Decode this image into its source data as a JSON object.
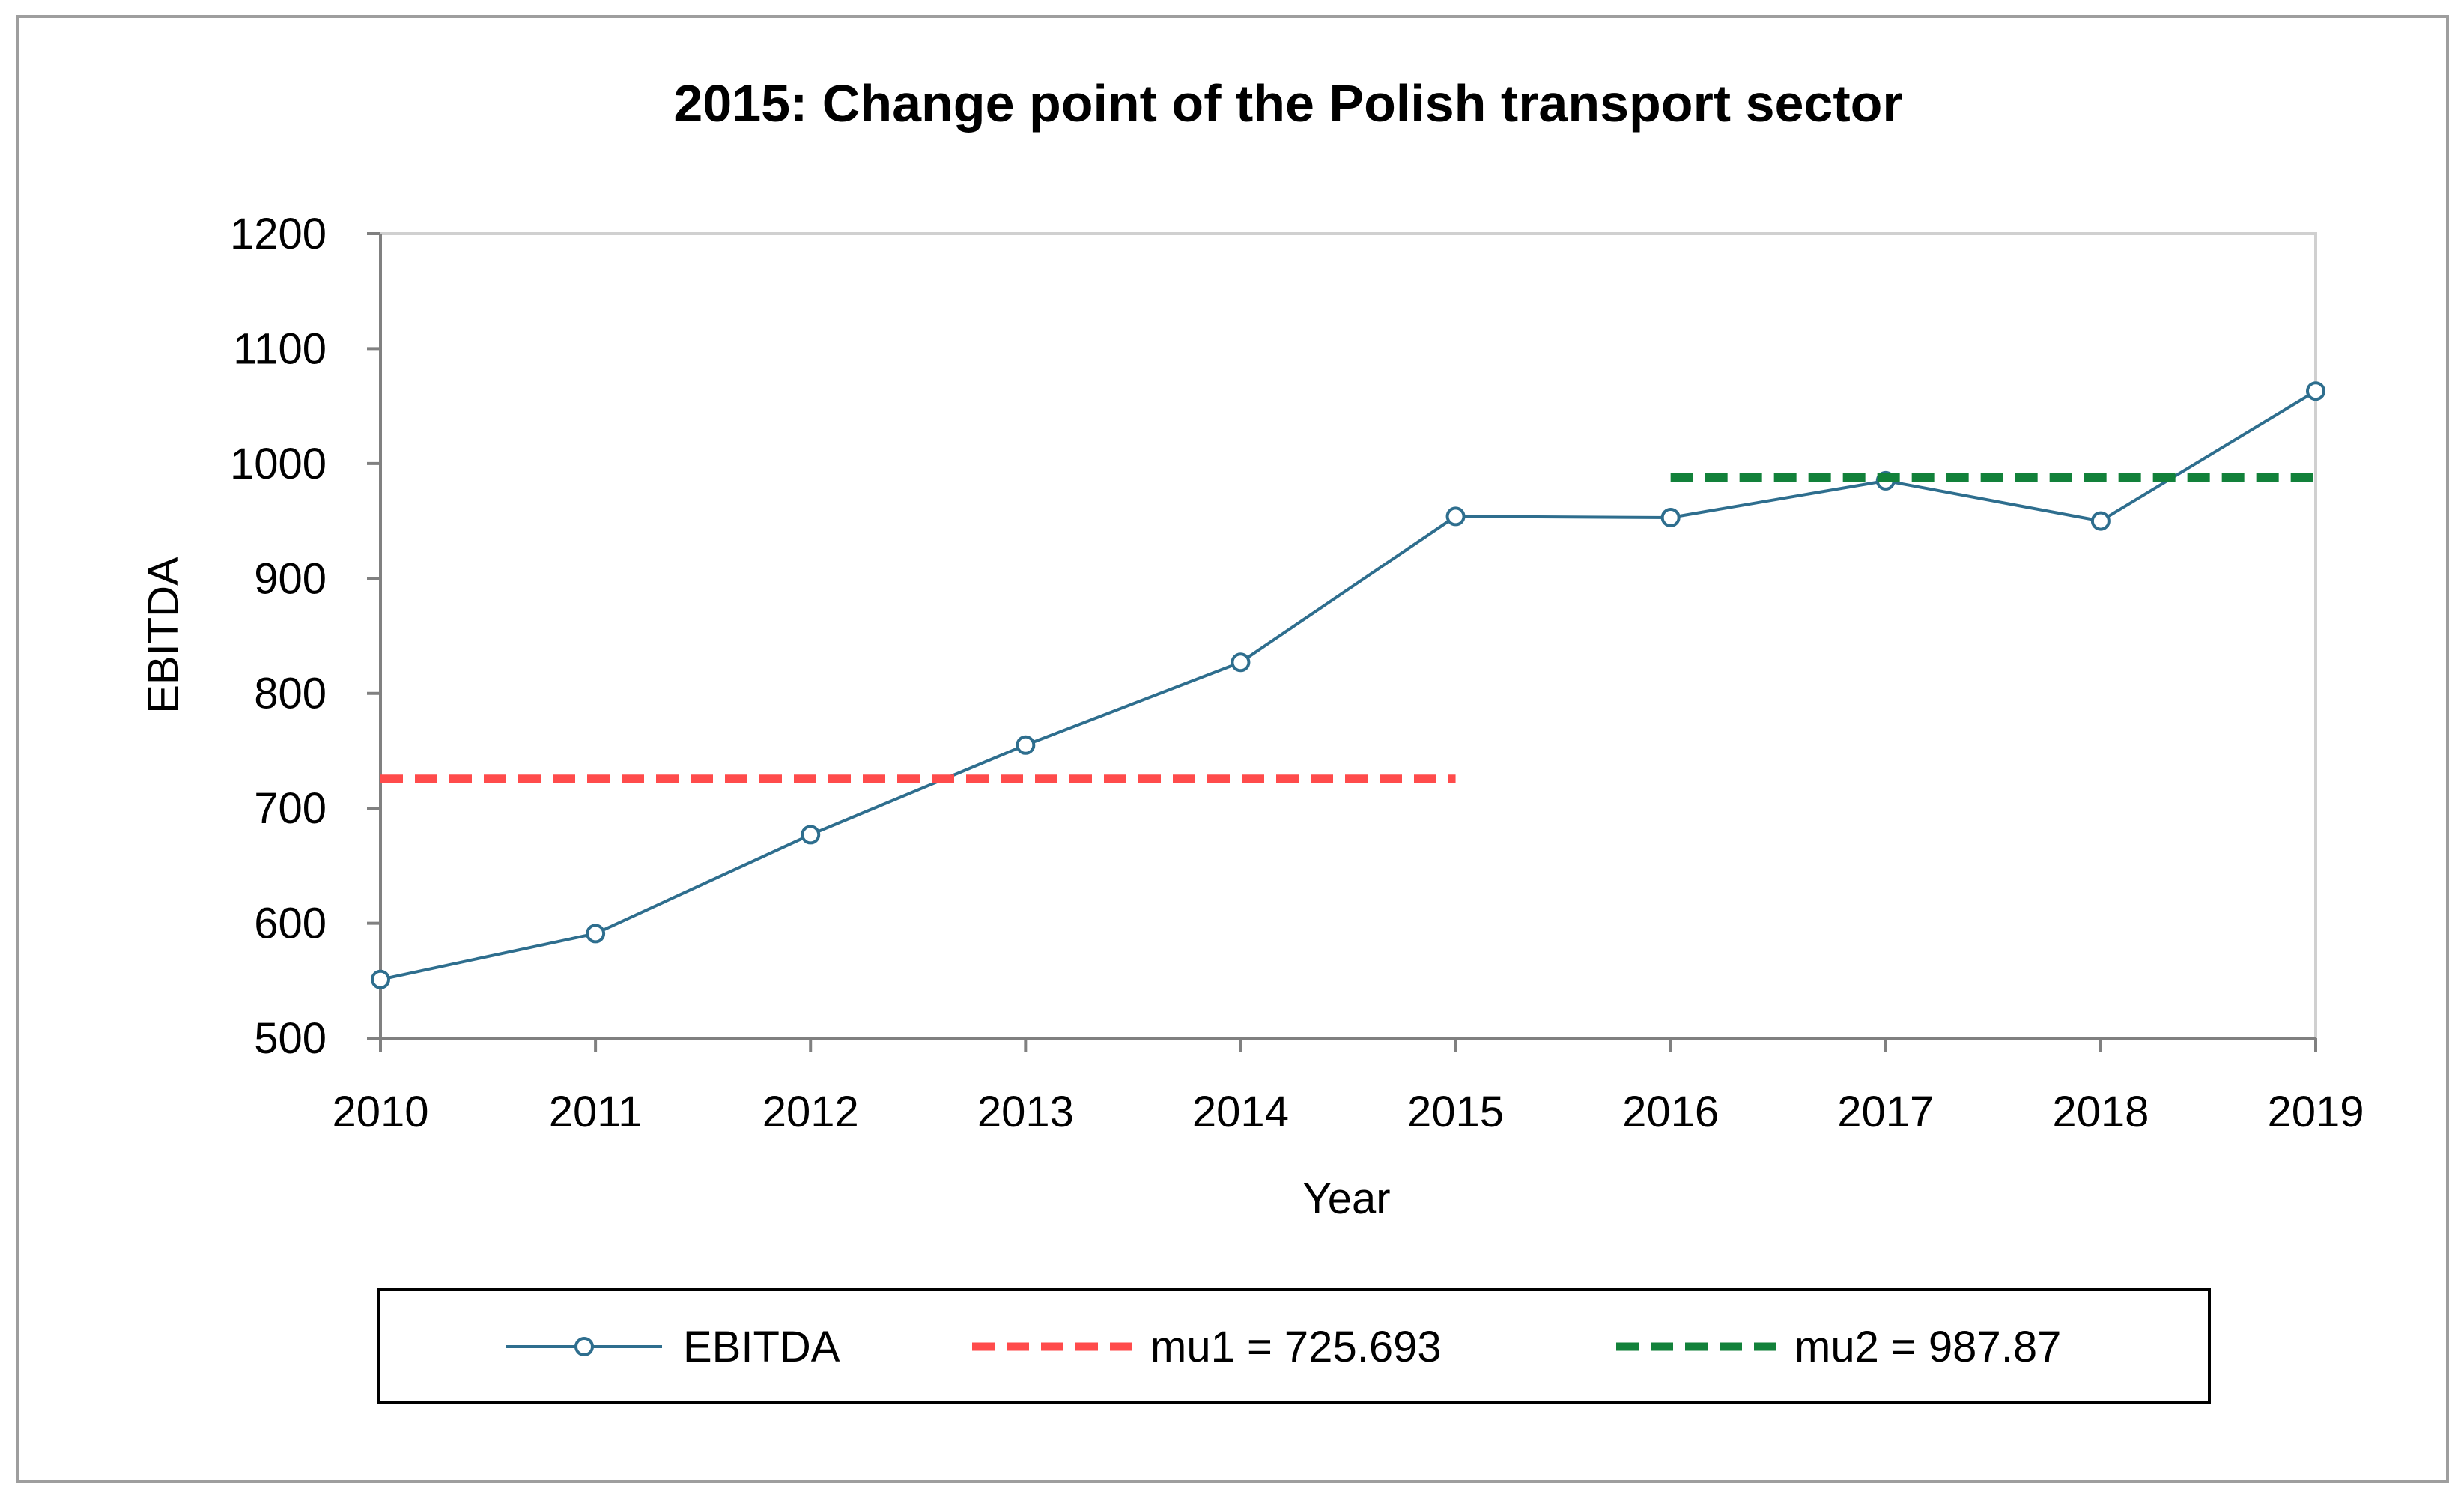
{
  "chart_data": {
    "type": "line",
    "title": "2015: Change point of the Polish transport sector",
    "xlabel": "Year",
    "ylabel": "EBITDA",
    "categories": [
      "2010",
      "2011",
      "2012",
      "2013",
      "2014",
      "2015",
      "2016",
      "2017",
      "2018",
      "2019"
    ],
    "ylim": [
      500,
      1200
    ],
    "yticks": [
      500,
      600,
      700,
      800,
      900,
      1000,
      1100,
      1200
    ],
    "grid": false,
    "legend_position": "bottom",
    "series": [
      {
        "name": "EBITDA",
        "style": "solid-line-circle-markers",
        "color": "#2e6e8e",
        "values": [
          551,
          591,
          677,
          755,
          827,
          954,
          953,
          985,
          950,
          1063
        ]
      },
      {
        "name": "mu1 = 725.693",
        "style": "dashed",
        "color": "#ff4b4b",
        "value": 725.693,
        "x_range": [
          "2010",
          "2015"
        ]
      },
      {
        "name": "mu2 = 987.87",
        "style": "dashed",
        "color": "#12813a",
        "value": 987.87,
        "x_range": [
          "2016",
          "2019"
        ]
      }
    ]
  }
}
